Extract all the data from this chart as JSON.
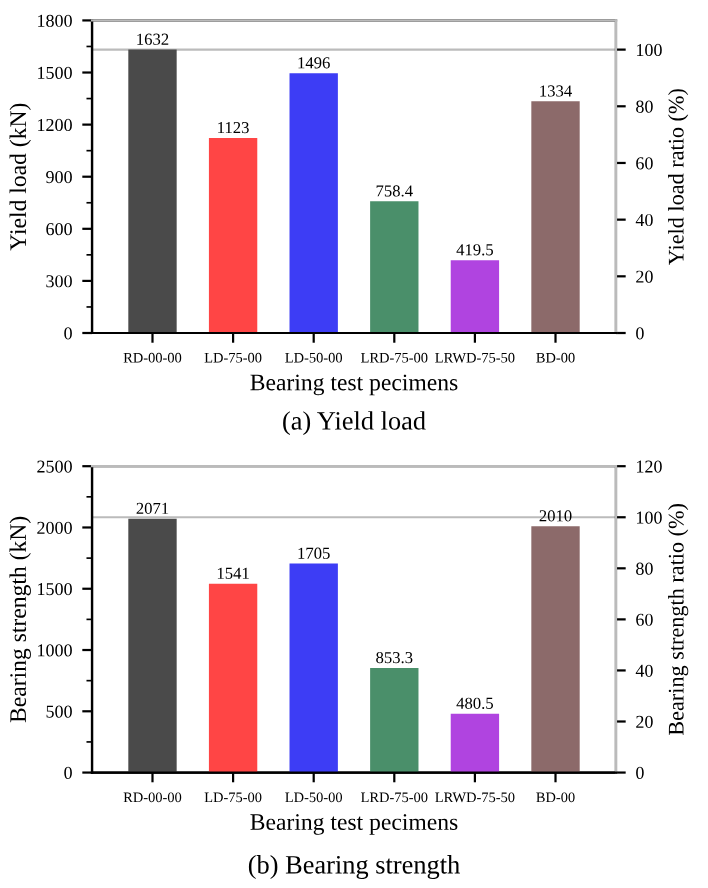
{
  "chart_data": [
    {
      "type": "bar",
      "categories": [
        "RD-00-00",
        "LD-75-00",
        "LD-50-00",
        "LRD-75-00",
        "LRWD-75-50",
        "BD-00"
      ],
      "values": [
        1632,
        1123,
        1496,
        758.4,
        419.5,
        1334
      ],
      "colors": [
        "#4a4a4a",
        "#ff4545",
        "#3d3df5",
        "#4a8f6a",
        "#b044e0",
        "#8c6a6a"
      ],
      "data_labels": true,
      "xlabel": "Bearing test pecimens",
      "ylabel": "Yield load (kN)",
      "y2label": "Yield load ratio (%)",
      "ylim": [
        0,
        1800
      ],
      "yticks": [
        0,
        300,
        600,
        900,
        1200,
        1500,
        1800
      ],
      "y2lim": [
        0,
        110.3
      ],
      "y2ticks": [
        0,
        20,
        40,
        60,
        80,
        100
      ],
      "ref_lines": [
        {
          "axis": "y2",
          "value": 100,
          "color": "#bbbbbb"
        }
      ],
      "grid": false,
      "annotations": [
        "(a) Yield load"
      ]
    },
    {
      "type": "bar",
      "categories": [
        "RD-00-00",
        "LD-75-00",
        "LD-50-00",
        "LRD-75-00",
        "LRWD-75-50",
        "BD-00"
      ],
      "values": [
        2071,
        1541,
        1705,
        853.3,
        480.5,
        2010
      ],
      "colors": [
        "#4a4a4a",
        "#ff4545",
        "#3d3df5",
        "#4a8f6a",
        "#b044e0",
        "#8c6a6a"
      ],
      "data_labels": true,
      "xlabel": "Bearing test pecimens",
      "ylabel": "Bearing strength (kN)",
      "y2label": "Bearing strength ratio (%)",
      "ylim": [
        0,
        2500
      ],
      "yticks": [
        0,
        500,
        1000,
        1500,
        2000,
        2500
      ],
      "y2lim": [
        0,
        120
      ],
      "y2ticks": [
        0,
        20,
        40,
        60,
        80,
        100,
        120
      ],
      "ref_lines": [
        {
          "axis": "y2",
          "value": 100,
          "color": "#bbbbbb"
        }
      ],
      "grid": false,
      "annotations": [
        "(b) Bearing strength"
      ]
    }
  ]
}
